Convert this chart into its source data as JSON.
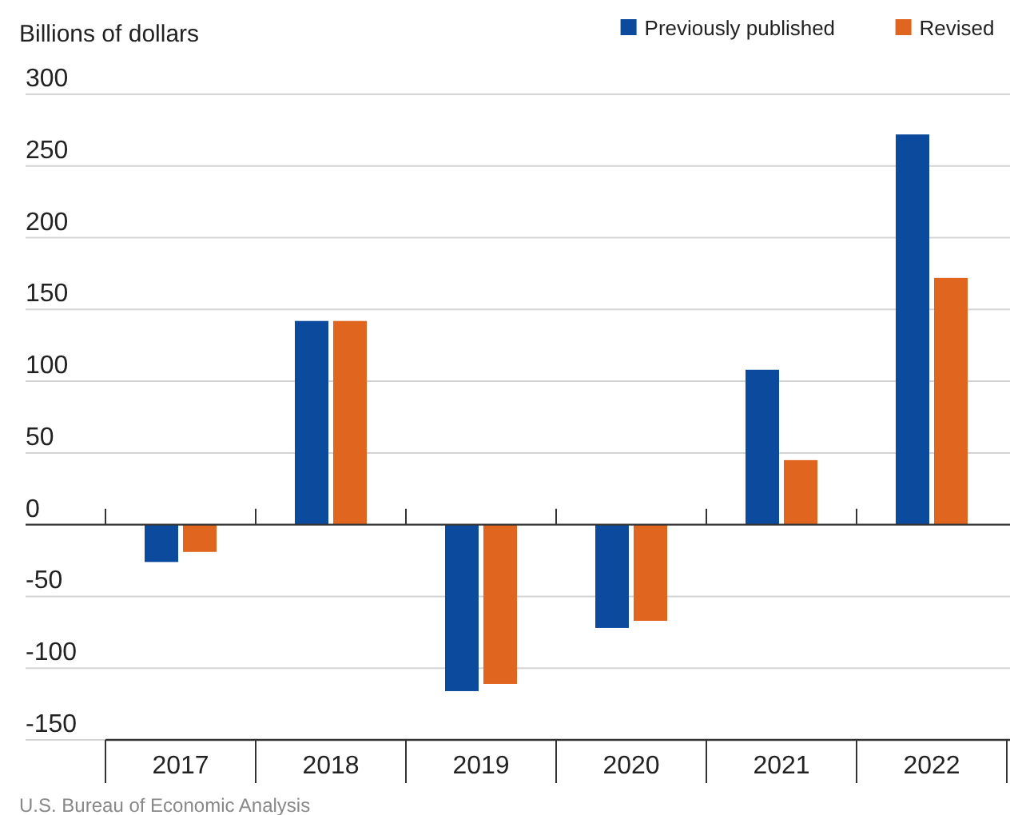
{
  "chart_data": {
    "type": "bar",
    "ylabel": "Billions of dollars",
    "categories": [
      "2017",
      "2018",
      "2019",
      "2020",
      "2021",
      "2022"
    ],
    "series": [
      {
        "name": "Previously published",
        "color": "#0b4a9c",
        "values": [
          -26,
          142,
          -116,
          -72,
          108,
          272
        ]
      },
      {
        "name": "Revised",
        "color": "#e0661f",
        "values": [
          -19,
          142,
          -111,
          -67,
          45,
          172
        ]
      }
    ],
    "ylim": [
      -150,
      300
    ],
    "yticks": [
      -150,
      -100,
      -50,
      0,
      50,
      100,
      150,
      200,
      250,
      300
    ],
    "grid": "y",
    "legend": "top right",
    "annotations": [
      "U.S. Bureau of Economic Analysis"
    ]
  }
}
